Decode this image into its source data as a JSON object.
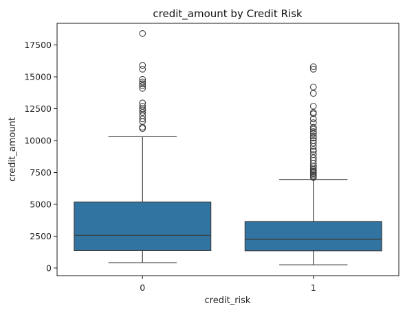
{
  "chart_data": {
    "type": "box",
    "title": "credit_amount by Credit Risk",
    "xlabel": "credit_risk",
    "ylabel": "credit_amount",
    "categories": [
      "0",
      "1"
    ],
    "ylim": [
      -600,
      19200
    ],
    "yticks": [
      0,
      2500,
      5000,
      7500,
      10000,
      12500,
      15000,
      17500
    ],
    "grid": false,
    "box_color": "#3274a1",
    "edge_color": "#3d3d3d",
    "boxes": [
      {
        "category": "0",
        "whisker_low": 420,
        "q1": 1370,
        "median": 2560,
        "q3": 5180,
        "whisker_high": 10300,
        "outliers": [
          10950,
          11050,
          11500,
          11700,
          11950,
          12200,
          12400,
          12500,
          12700,
          12950,
          14100,
          14300,
          14450,
          14600,
          14800,
          15600,
          15900,
          18400
        ]
      },
      {
        "category": "1",
        "whisker_low": 250,
        "q1": 1350,
        "median": 2250,
        "q3": 3650,
        "whisker_high": 6950,
        "outliers": [
          7100,
          7200,
          7300,
          7400,
          7500,
          7600,
          7700,
          7850,
          8000,
          8200,
          8450,
          8650,
          8900,
          9150,
          9300,
          9550,
          9800,
          10000,
          10200,
          10350,
          10550,
          10700,
          10900,
          11050,
          11400,
          11700,
          12100,
          12200,
          12700,
          13700,
          14200,
          15600,
          15800
        ]
      }
    ]
  }
}
